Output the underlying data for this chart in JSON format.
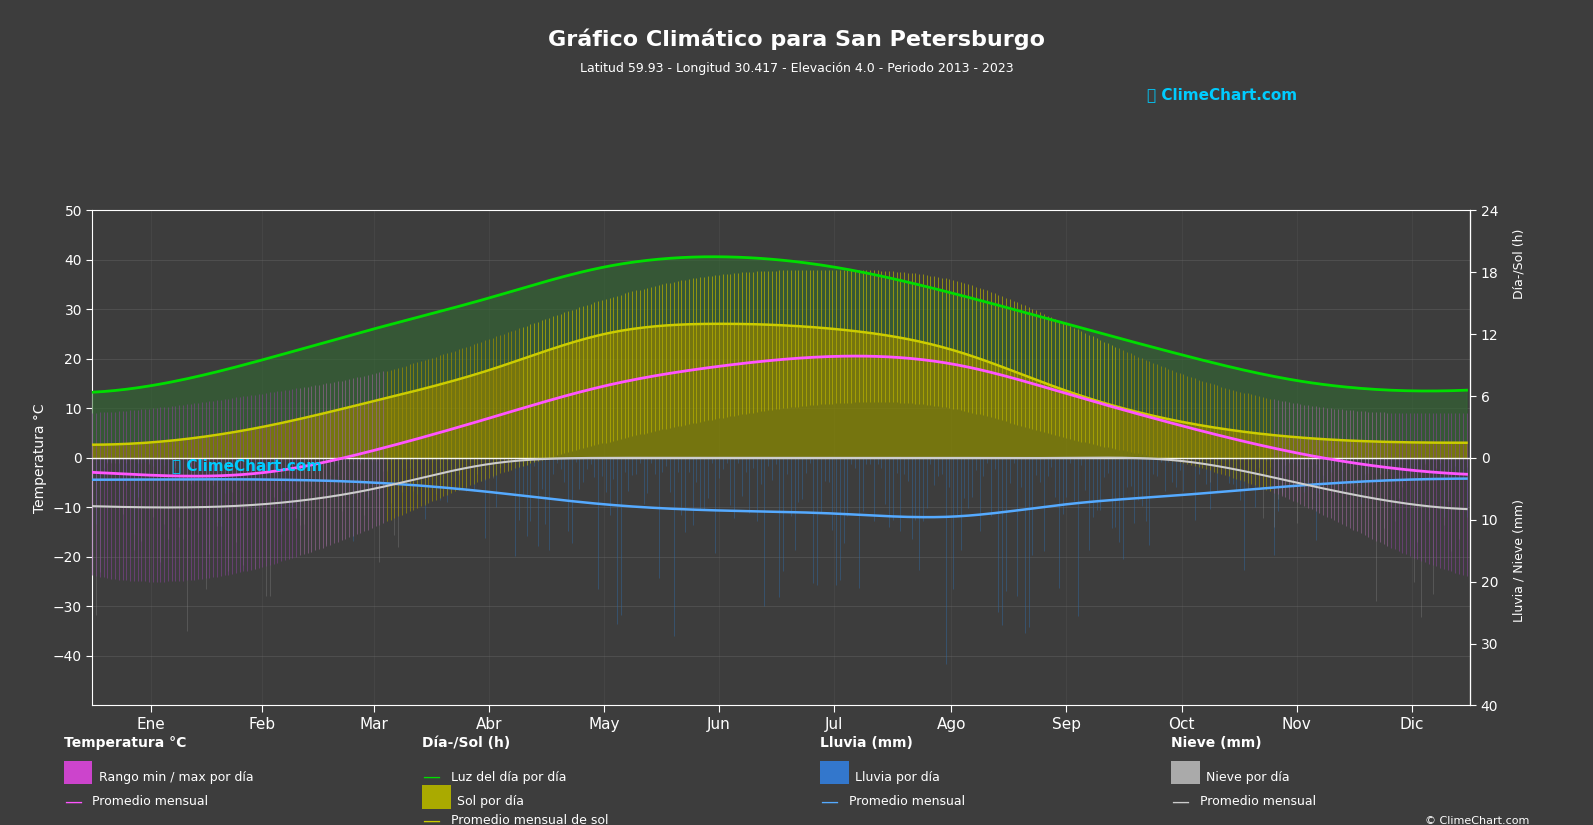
{
  "title": "Gráfico Climático para San Petersburgo",
  "subtitle": "Latitud 59.93 - Longitud 30.417 - Elevación 4.0 - Periodo 2013 - 2023",
  "bg_color": "#3d3d3d",
  "months": [
    "Ene",
    "Feb",
    "Mar",
    "Abr",
    "May",
    "Jun",
    "Jul",
    "Ago",
    "Sep",
    "Oct",
    "Nov",
    "Dic"
  ],
  "days_per_month": [
    31,
    28,
    31,
    30,
    31,
    30,
    31,
    31,
    30,
    31,
    30,
    31
  ],
  "temp_min_daily": [
    -25,
    -22,
    -14,
    -4,
    3,
    8,
    11,
    10,
    4,
    -1,
    -9,
    -20
  ],
  "temp_max_daily": [
    10,
    13,
    17,
    24,
    32,
    37,
    38,
    36,
    27,
    17,
    11,
    9
  ],
  "temp_avg_monthly": [
    -3.5,
    -3.0,
    1.5,
    8.0,
    14.5,
    18.5,
    20.5,
    19.0,
    13.0,
    6.5,
    1.0,
    -2.5
  ],
  "daylight_monthly": [
    7.0,
    9.5,
    12.5,
    15.5,
    18.5,
    19.5,
    18.5,
    16.0,
    13.0,
    10.0,
    7.5,
    6.5
  ],
  "sunshine_monthly": [
    1.5,
    3.0,
    5.5,
    8.5,
    12.0,
    13.0,
    12.5,
    10.5,
    6.5,
    3.5,
    2.0,
    1.5
  ],
  "rain_monthly_mm": [
    3.5,
    3.5,
    4.0,
    5.5,
    7.5,
    8.5,
    9.0,
    9.5,
    7.5,
    6.0,
    4.5,
    3.5
  ],
  "snow_monthly_mm": [
    8.0,
    7.5,
    5.0,
    1.0,
    0.0,
    0.0,
    0.0,
    0.0,
    0.0,
    0.5,
    4.0,
    7.5
  ],
  "daylight_scale": 50.0,
  "daylight_max": 24.0,
  "rain_scale": -50.0,
  "rain_max": 40.0,
  "ylim": [
    -50,
    50
  ],
  "yticks": [
    -40,
    -30,
    -20,
    -10,
    0,
    10,
    20,
    30,
    40,
    50
  ],
  "right_top_ticks": [
    0,
    6,
    12,
    18,
    24
  ],
  "right_bot_ticks": [
    0,
    10,
    20,
    30,
    40
  ],
  "color_bg": "#3d3d3d",
  "color_grid": "#666666",
  "color_daylight_line": "#00dd00",
  "color_daylight_fill": "#336633",
  "color_sunshine_line": "#cccc00",
  "color_sunshine_fill": "#888800",
  "color_temp_warm": "#b8b000",
  "color_temp_cold": "#884499",
  "color_temp_avg_line": "#ff55ff",
  "color_rain_bars": "#336699",
  "color_rain_line": "#55aaff",
  "color_snow_bars": "#888888",
  "color_snow_line": "#cccccc",
  "color_zero_line": "#ffffff",
  "color_axis": "#ffffff",
  "color_text": "#ffffff"
}
